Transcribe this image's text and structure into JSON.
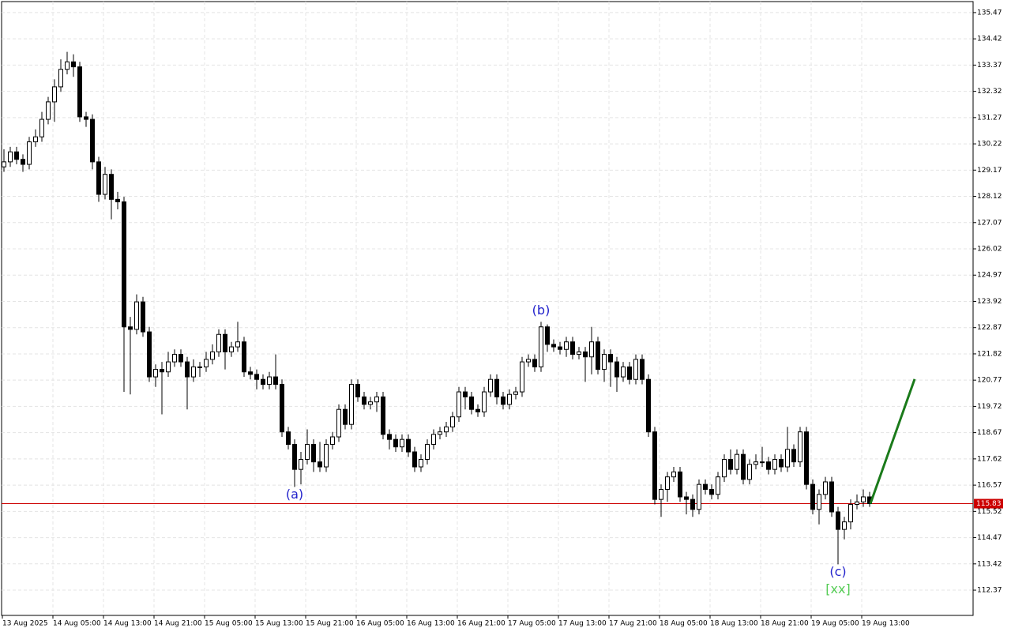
{
  "chart_data": {
    "type": "candlestick",
    "ylim": [
      111.36,
      135.91
    ],
    "yticks": [
      135.47,
      134.42,
      133.37,
      132.32,
      131.27,
      130.22,
      129.17,
      128.12,
      127.07,
      126.02,
      124.97,
      123.92,
      122.87,
      121.82,
      120.77,
      119.72,
      118.67,
      117.62,
      116.57,
      115.52,
      114.47,
      113.42,
      112.37
    ],
    "xticks": [
      "13 Aug 2025",
      "14 Aug 05:00",
      "14 Aug 13:00",
      "14 Aug 21:00",
      "15 Aug 05:00",
      "15 Aug 13:00",
      "15 Aug 21:00",
      "16 Aug 05:00",
      "16 Aug 13:00",
      "16 Aug 21:00",
      "17 Aug 05:00",
      "17 Aug 13:00",
      "17 Aug 21:00",
      "18 Aug 05:00",
      "18 Aug 13:00",
      "18 Aug 21:00",
      "19 Aug 05:00",
      "19 Aug 13:00"
    ],
    "grid": true,
    "current_price": 115.83,
    "current_price_color": "#cc0000",
    "projection": {
      "values": [
        115.83,
        120.81
      ],
      "color": "#1a7a1a"
    },
    "annotations": [
      {
        "text": "(a)",
        "at": 46
      },
      {
        "text": "(b)",
        "at": 85
      },
      {
        "text": "(c)",
        "at": 132
      },
      {
        "text": "[xx]",
        "at": 132
      }
    ],
    "ohlc": [
      [
        129.3,
        130.0,
        129.1,
        129.5
      ],
      [
        129.5,
        130.1,
        129.3,
        129.9
      ],
      [
        129.9,
        130.1,
        129.4,
        129.6
      ],
      [
        129.6,
        129.8,
        129.1,
        129.4
      ],
      [
        129.4,
        130.5,
        129.2,
        130.3
      ],
      [
        130.3,
        130.8,
        130.1,
        130.5
      ],
      [
        130.5,
        131.5,
        130.3,
        131.2
      ],
      [
        131.2,
        132.1,
        131.0,
        131.9
      ],
      [
        131.9,
        132.8,
        131.1,
        132.5
      ],
      [
        132.5,
        133.6,
        132.3,
        133.2
      ],
      [
        133.2,
        133.9,
        133.0,
        133.5
      ],
      [
        133.5,
        133.8,
        132.9,
        133.3
      ],
      [
        133.3,
        133.5,
        131.1,
        131.3
      ],
      [
        131.3,
        131.5,
        130.9,
        131.2
      ],
      [
        131.2,
        131.4,
        129.2,
        129.5
      ],
      [
        129.5,
        129.7,
        127.9,
        128.2
      ],
      [
        128.2,
        129.3,
        128.0,
        129.0
      ],
      [
        129.0,
        129.2,
        127.2,
        128.0
      ],
      [
        128.0,
        128.3,
        127.6,
        127.9
      ],
      [
        127.9,
        128.1,
        120.3,
        122.9
      ],
      [
        122.9,
        123.3,
        120.2,
        122.8
      ],
      [
        122.8,
        124.2,
        122.6,
        123.9
      ],
      [
        123.9,
        124.1,
        122.5,
        122.7
      ],
      [
        122.7,
        122.9,
        120.7,
        120.9
      ],
      [
        120.9,
        121.4,
        120.5,
        121.2
      ],
      [
        121.2,
        121.5,
        119.4,
        121.1
      ],
      [
        121.1,
        121.9,
        120.9,
        121.5
      ],
      [
        121.5,
        122.0,
        121.3,
        121.8
      ],
      [
        121.8,
        122.0,
        121.3,
        121.5
      ],
      [
        121.5,
        121.7,
        119.6,
        120.9
      ],
      [
        120.9,
        121.6,
        120.7,
        121.3
      ],
      [
        121.3,
        121.5,
        120.9,
        121.3
      ],
      [
        121.3,
        121.9,
        121.1,
        121.6
      ],
      [
        121.6,
        122.2,
        121.4,
        121.9
      ],
      [
        121.9,
        122.8,
        121.7,
        122.6
      ],
      [
        122.6,
        122.8,
        121.2,
        121.9
      ],
      [
        121.9,
        122.3,
        121.7,
        122.1
      ],
      [
        122.1,
        123.1,
        121.9,
        122.3
      ],
      [
        122.3,
        122.5,
        120.9,
        121.1
      ],
      [
        121.1,
        121.3,
        120.8,
        121.0
      ],
      [
        121.0,
        121.2,
        120.4,
        120.8
      ],
      [
        120.8,
        121.0,
        120.4,
        120.6
      ],
      [
        120.6,
        121.1,
        120.4,
        120.9
      ],
      [
        120.9,
        121.8,
        120.4,
        120.6
      ],
      [
        120.6,
        120.8,
        118.5,
        118.7
      ],
      [
        118.7,
        118.9,
        118.0,
        118.2
      ],
      [
        118.2,
        118.4,
        116.5,
        117.2
      ],
      [
        117.2,
        117.9,
        116.6,
        117.6
      ],
      [
        117.6,
        118.8,
        117.4,
        118.2
      ],
      [
        118.2,
        118.4,
        117.1,
        117.5
      ],
      [
        117.5,
        118.3,
        117.1,
        117.3
      ],
      [
        117.3,
        118.4,
        117.1,
        118.2
      ],
      [
        118.2,
        118.7,
        118.0,
        118.5
      ],
      [
        118.5,
        119.8,
        118.3,
        119.6
      ],
      [
        119.6,
        119.8,
        118.8,
        119.0
      ],
      [
        119.0,
        120.8,
        118.8,
        120.6
      ],
      [
        120.6,
        120.8,
        119.9,
        120.1
      ],
      [
        120.1,
        120.3,
        119.6,
        119.8
      ],
      [
        119.8,
        120.1,
        119.6,
        119.9
      ],
      [
        119.9,
        120.3,
        119.5,
        120.1
      ],
      [
        120.1,
        120.3,
        118.4,
        118.6
      ],
      [
        118.6,
        118.8,
        118.0,
        118.4
      ],
      [
        118.4,
        118.6,
        117.9,
        118.1
      ],
      [
        118.1,
        118.6,
        117.9,
        118.4
      ],
      [
        118.4,
        118.6,
        117.7,
        117.9
      ],
      [
        117.9,
        118.1,
        117.1,
        117.3
      ],
      [
        117.3,
        117.8,
        117.1,
        117.6
      ],
      [
        117.6,
        118.4,
        117.4,
        118.2
      ],
      [
        118.2,
        118.8,
        118.0,
        118.6
      ],
      [
        118.6,
        118.9,
        118.4,
        118.7
      ],
      [
        118.7,
        119.1,
        118.5,
        118.9
      ],
      [
        118.9,
        119.5,
        118.7,
        119.3
      ],
      [
        119.3,
        120.5,
        119.1,
        120.3
      ],
      [
        120.3,
        120.5,
        119.6,
        120.1
      ],
      [
        120.1,
        120.3,
        119.4,
        119.6
      ],
      [
        119.6,
        119.8,
        119.3,
        119.5
      ],
      [
        119.5,
        120.5,
        119.3,
        120.3
      ],
      [
        120.3,
        121.0,
        120.1,
        120.8
      ],
      [
        120.8,
        121.0,
        119.8,
        120.1
      ],
      [
        120.1,
        120.3,
        119.6,
        119.8
      ],
      [
        119.8,
        120.4,
        119.6,
        120.2
      ],
      [
        120.2,
        120.5,
        120.0,
        120.3
      ],
      [
        120.3,
        121.7,
        120.1,
        121.5
      ],
      [
        121.5,
        121.8,
        121.3,
        121.6
      ],
      [
        121.6,
        121.8,
        121.1,
        121.3
      ],
      [
        121.3,
        123.1,
        121.1,
        122.9
      ],
      [
        122.9,
        123.0,
        121.9,
        122.2
      ],
      [
        122.2,
        122.4,
        121.9,
        122.1
      ],
      [
        122.1,
        122.3,
        121.8,
        122.0
      ],
      [
        122.0,
        122.5,
        121.7,
        122.3
      ],
      [
        122.3,
        122.5,
        121.6,
        121.8
      ],
      [
        121.8,
        122.1,
        121.6,
        121.9
      ],
      [
        121.9,
        122.1,
        120.7,
        121.7
      ],
      [
        121.7,
        122.9,
        121.0,
        122.3
      ],
      [
        122.3,
        122.5,
        121.0,
        121.2
      ],
      [
        121.2,
        122.0,
        120.7,
        121.8
      ],
      [
        121.8,
        122.0,
        120.5,
        121.5
      ],
      [
        121.5,
        121.7,
        120.3,
        120.9
      ],
      [
        120.9,
        121.5,
        120.7,
        121.3
      ],
      [
        121.3,
        121.5,
        120.6,
        120.8
      ],
      [
        120.8,
        121.8,
        120.6,
        121.6
      ],
      [
        121.6,
        121.8,
        120.6,
        120.8
      ],
      [
        120.8,
        121.0,
        118.5,
        118.7
      ],
      [
        118.7,
        118.9,
        115.8,
        116.0
      ],
      [
        116.0,
        116.6,
        115.3,
        116.4
      ],
      [
        116.4,
        117.1,
        115.9,
        116.9
      ],
      [
        116.9,
        117.3,
        116.7,
        117.1
      ],
      [
        117.1,
        117.3,
        115.9,
        116.1
      ],
      [
        116.1,
        116.3,
        115.4,
        116.0
      ],
      [
        116.0,
        116.2,
        115.3,
        115.6
      ],
      [
        115.6,
        116.8,
        115.4,
        116.6
      ],
      [
        116.6,
        116.8,
        116.2,
        116.4
      ],
      [
        116.4,
        116.6,
        116.0,
        116.2
      ],
      [
        116.2,
        117.1,
        116.0,
        116.9
      ],
      [
        116.9,
        117.8,
        116.7,
        117.6
      ],
      [
        117.6,
        118.0,
        117.0,
        117.2
      ],
      [
        117.2,
        118.0,
        117.0,
        117.8
      ],
      [
        117.8,
        118.0,
        116.6,
        116.8
      ],
      [
        116.8,
        117.6,
        116.6,
        117.4
      ],
      [
        117.4,
        117.8,
        117.2,
        117.5
      ],
      [
        117.5,
        118.1,
        117.3,
        117.5
      ],
      [
        117.5,
        117.7,
        117.0,
        117.2
      ],
      [
        117.2,
        117.8,
        117.0,
        117.6
      ],
      [
        117.6,
        117.8,
        117.1,
        117.3
      ],
      [
        117.3,
        118.9,
        117.1,
        118.0
      ],
      [
        118.0,
        118.2,
        117.3,
        117.5
      ],
      [
        117.5,
        118.9,
        117.3,
        118.7
      ],
      [
        118.7,
        118.9,
        116.4,
        116.6
      ],
      [
        116.6,
        116.8,
        115.4,
        115.6
      ],
      [
        115.6,
        116.4,
        115.0,
        116.2
      ],
      [
        116.2,
        116.9,
        116.0,
        116.7
      ],
      [
        116.7,
        116.9,
        115.3,
        115.5
      ],
      [
        115.5,
        115.7,
        113.4,
        114.8
      ],
      [
        114.8,
        115.3,
        114.4,
        115.1
      ],
      [
        115.1,
        116.0,
        114.8,
        115.8
      ],
      [
        115.8,
        116.2,
        115.6,
        115.9
      ],
      [
        115.9,
        116.4,
        115.7,
        116.1
      ],
      [
        116.1,
        116.3,
        115.7,
        115.83
      ]
    ]
  }
}
